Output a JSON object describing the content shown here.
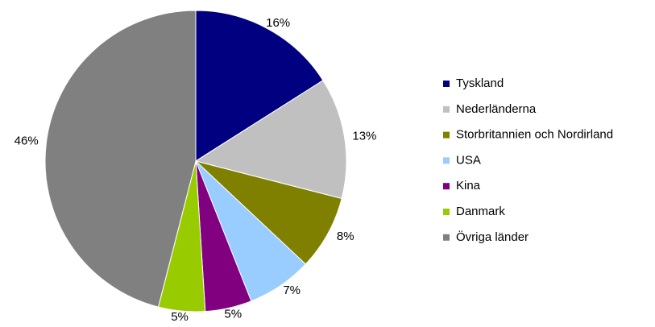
{
  "chart_data": {
    "type": "pie",
    "categories": [
      "Tyskland",
      "Nederländerna",
      "Storbritannien och Nordirland",
      "USA",
      "Kina",
      "Danmark",
      "Övriga länder"
    ],
    "values": [
      16,
      13,
      8,
      7,
      5,
      5,
      46
    ],
    "value_labels": [
      "16%",
      "13%",
      "8%",
      "7%",
      "5%",
      "5%",
      "46%"
    ],
    "colors": [
      "#000080",
      "#c0c0c0",
      "#808000",
      "#99ccff",
      "#800080",
      "#99cc00",
      "#808080"
    ],
    "legend": "right"
  }
}
